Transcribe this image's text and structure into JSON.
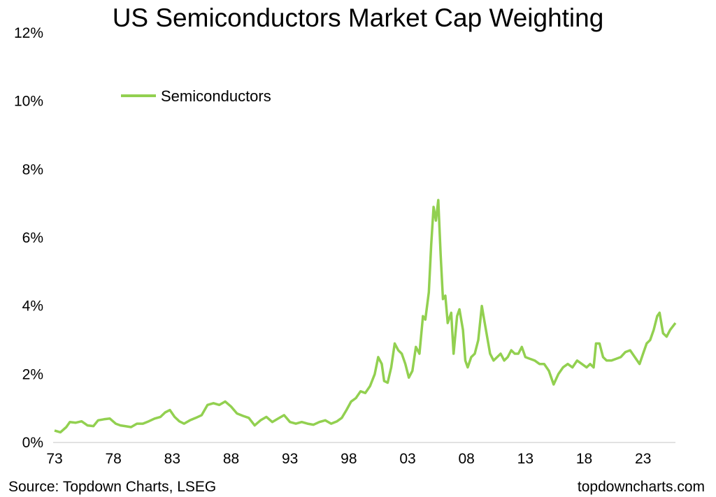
{
  "chart_data": {
    "type": "line",
    "title": "US Semiconductors Market Cap Weighting",
    "xlabel": "",
    "ylabel": "",
    "ylim": [
      0,
      12
    ],
    "y_ticks": [
      "0%",
      "2%",
      "4%",
      "6%",
      "8%",
      "10%",
      "12%"
    ],
    "x_ticks": [
      "73",
      "78",
      "83",
      "88",
      "93",
      "98",
      "03",
      "08",
      "13",
      "18",
      "23"
    ],
    "xlim": [
      1973,
      2025.75
    ],
    "grid": false,
    "legend_position": "top-left",
    "series": [
      {
        "name": "Semiconductors",
        "color": "#92d050",
        "points": [
          [
            1973.0,
            0.35
          ],
          [
            1973.5,
            0.3
          ],
          [
            1974.0,
            0.45
          ],
          [
            1974.3,
            0.6
          ],
          [
            1974.8,
            0.58
          ],
          [
            1975.3,
            0.62
          ],
          [
            1975.8,
            0.5
          ],
          [
            1976.3,
            0.48
          ],
          [
            1976.7,
            0.65
          ],
          [
            1977.2,
            0.68
          ],
          [
            1977.7,
            0.7
          ],
          [
            1978.2,
            0.55
          ],
          [
            1978.6,
            0.5
          ],
          [
            1979.0,
            0.48
          ],
          [
            1979.5,
            0.45
          ],
          [
            1980.0,
            0.55
          ],
          [
            1980.5,
            0.55
          ],
          [
            1981.0,
            0.62
          ],
          [
            1981.5,
            0.7
          ],
          [
            1982.0,
            0.75
          ],
          [
            1982.4,
            0.88
          ],
          [
            1982.8,
            0.95
          ],
          [
            1983.2,
            0.75
          ],
          [
            1983.6,
            0.62
          ],
          [
            1984.0,
            0.55
          ],
          [
            1984.5,
            0.65
          ],
          [
            1985.0,
            0.72
          ],
          [
            1985.5,
            0.8
          ],
          [
            1986.0,
            1.1
          ],
          [
            1986.5,
            1.15
          ],
          [
            1987.0,
            1.1
          ],
          [
            1987.5,
            1.2
          ],
          [
            1988.0,
            1.05
          ],
          [
            1988.5,
            0.85
          ],
          [
            1989.0,
            0.78
          ],
          [
            1989.5,
            0.72
          ],
          [
            1990.0,
            0.5
          ],
          [
            1990.5,
            0.65
          ],
          [
            1991.0,
            0.75
          ],
          [
            1991.5,
            0.6
          ],
          [
            1992.0,
            0.7
          ],
          [
            1992.5,
            0.8
          ],
          [
            1993.0,
            0.6
          ],
          [
            1993.5,
            0.55
          ],
          [
            1994.0,
            0.6
          ],
          [
            1994.5,
            0.55
          ],
          [
            1995.0,
            0.52
          ],
          [
            1995.5,
            0.6
          ],
          [
            1996.0,
            0.65
          ],
          [
            1996.5,
            0.55
          ],
          [
            1997.0,
            0.62
          ],
          [
            1997.4,
            0.72
          ],
          [
            1997.8,
            0.95
          ],
          [
            1998.2,
            1.2
          ],
          [
            1998.6,
            1.3
          ],
          [
            1999.0,
            1.5
          ],
          [
            1999.4,
            1.45
          ],
          [
            1999.8,
            1.65
          ],
          [
            2000.2,
            2.0
          ],
          [
            2000.5,
            2.5
          ],
          [
            2000.8,
            2.3
          ],
          [
            2001.0,
            1.8
          ],
          [
            2001.3,
            1.75
          ],
          [
            2001.6,
            2.2
          ],
          [
            2001.9,
            2.9
          ],
          [
            2002.2,
            2.7
          ],
          [
            2002.5,
            2.6
          ],
          [
            2002.8,
            2.3
          ],
          [
            2003.1,
            1.9
          ],
          [
            2003.4,
            2.1
          ],
          [
            2003.7,
            2.8
          ],
          [
            2004.0,
            2.6
          ],
          [
            2004.3,
            3.7
          ],
          [
            2004.5,
            3.6
          ],
          [
            2004.8,
            4.4
          ],
          [
            2005.0,
            5.8
          ],
          [
            2005.2,
            6.9
          ],
          [
            2005.4,
            6.5
          ],
          [
            2005.6,
            7.1
          ],
          [
            2005.8,
            5.5
          ],
          [
            2006.0,
            4.2
          ],
          [
            2006.2,
            4.3
          ],
          [
            2006.4,
            3.5
          ],
          [
            2006.7,
            3.8
          ],
          [
            2006.9,
            2.6
          ],
          [
            2007.2,
            3.7
          ],
          [
            2007.4,
            3.9
          ],
          [
            2007.7,
            3.3
          ],
          [
            2007.9,
            2.4
          ],
          [
            2008.1,
            2.2
          ],
          [
            2008.4,
            2.5
          ],
          [
            2008.7,
            2.6
          ],
          [
            2009.0,
            3.0
          ],
          [
            2009.3,
            4.0
          ],
          [
            2009.5,
            3.6
          ],
          [
            2009.8,
            3.0
          ],
          [
            2010.0,
            2.6
          ],
          [
            2010.3,
            2.4
          ],
          [
            2010.6,
            2.5
          ],
          [
            2010.9,
            2.6
          ],
          [
            2011.2,
            2.4
          ],
          [
            2011.5,
            2.5
          ],
          [
            2011.8,
            2.7
          ],
          [
            2012.1,
            2.6
          ],
          [
            2012.4,
            2.6
          ],
          [
            2012.7,
            2.8
          ],
          [
            2013.0,
            2.5
          ],
          [
            2013.4,
            2.45
          ],
          [
            2013.8,
            2.4
          ],
          [
            2014.2,
            2.3
          ],
          [
            2014.6,
            2.3
          ],
          [
            2015.0,
            2.1
          ],
          [
            2015.4,
            1.7
          ],
          [
            2015.8,
            2.0
          ],
          [
            2016.2,
            2.2
          ],
          [
            2016.6,
            2.3
          ],
          [
            2017.0,
            2.2
          ],
          [
            2017.4,
            2.4
          ],
          [
            2017.8,
            2.3
          ],
          [
            2018.2,
            2.2
          ],
          [
            2018.5,
            2.3
          ],
          [
            2018.8,
            2.2
          ],
          [
            2019.0,
            2.9
          ],
          [
            2019.3,
            2.9
          ],
          [
            2019.6,
            2.5
          ],
          [
            2019.9,
            2.4
          ],
          [
            2020.3,
            2.4
          ],
          [
            2020.7,
            2.45
          ],
          [
            2021.1,
            2.5
          ],
          [
            2021.5,
            2.65
          ],
          [
            2021.9,
            2.7
          ],
          [
            2022.3,
            2.5
          ],
          [
            2022.7,
            2.3
          ],
          [
            2023.0,
            2.6
          ],
          [
            2023.3,
            2.9
          ],
          [
            2023.6,
            3.0
          ],
          [
            2023.9,
            3.3
          ],
          [
            2024.2,
            3.7
          ],
          [
            2024.4,
            3.8
          ],
          [
            2024.7,
            3.2
          ],
          [
            2025.0,
            3.1
          ],
          [
            2025.3,
            3.3
          ],
          [
            2025.75,
            3.5
          ]
        ]
      }
    ]
  },
  "footer": {
    "source": "Source: Topdown Charts, LSEG",
    "brand": "topdowncharts.com"
  }
}
